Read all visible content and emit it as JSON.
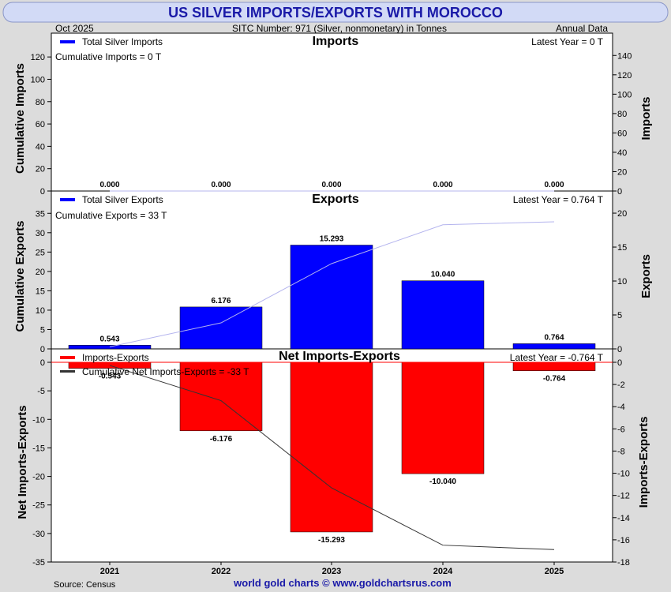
{
  "title": "US SILVER IMPORTS/EXPORTS WITH MOROCCO",
  "header": {
    "date": "Oct  2025",
    "sitc": "SITC Number: 971 (Silver, nonmonetary) in Tonnes",
    "frequency": "Annual Data"
  },
  "footer": {
    "source": "Source: Census",
    "credit": "world gold charts © www.goldchartsrus.com"
  },
  "colors": {
    "title_bg": "#d2daf6",
    "title_text": "#1a1aa8",
    "page_bg": "#dcdcdc",
    "import_bar": "#0000ff",
    "export_bar": "#0000ff",
    "net_bar": "#ff0000",
    "cumulative_export_line": "#b4b4ee",
    "cumulative_net_line": "#333333",
    "zero_line": "#ff0000"
  },
  "chart_data": [
    {
      "type": "bar",
      "panel": "imports",
      "title": "Imports",
      "legend": "Total Silver Imports",
      "cumulative_label": "Cumulative Imports = 0 T",
      "latest_label": "Latest Year = 0 T",
      "ylabel_left": "Cumulative Imports",
      "ylabel_right": "Imports",
      "categories": [
        "2021",
        "2022",
        "2023",
        "2024",
        "2025"
      ],
      "values": [
        0,
        0,
        0,
        0,
        0
      ],
      "value_labels": [
        "0.000",
        "0.000",
        "0.000",
        "0.000",
        "0.000"
      ],
      "cumulative": [
        0,
        0,
        0,
        0,
        0
      ],
      "left_ylim": [
        0,
        130
      ],
      "left_ticks": [
        0,
        20,
        40,
        60,
        80,
        100,
        120
      ],
      "right_ylim": [
        0,
        150
      ],
      "right_ticks": [
        0,
        20,
        40,
        60,
        80,
        100,
        120,
        140
      ]
    },
    {
      "type": "bar",
      "panel": "exports",
      "title": "Exports",
      "legend": "Total Silver Exports",
      "cumulative_label": "Cumulative Exports = 33 T",
      "latest_label": "Latest Year = 0.764 T",
      "ylabel_left": "Cumulative Exports",
      "ylabel_right": "Exports",
      "categories": [
        "2021",
        "2022",
        "2023",
        "2024",
        "2025"
      ],
      "values": [
        0.543,
        6.176,
        15.293,
        10.04,
        0.764
      ],
      "value_labels": [
        "0.543",
        "6.176",
        "15.293",
        "10.040",
        "0.764"
      ],
      "cumulative": [
        0.543,
        6.719,
        22.012,
        32.052,
        32.816
      ],
      "left_ylim": [
        0,
        37.5
      ],
      "left_ticks": [
        0,
        5,
        10,
        15,
        20,
        25,
        30,
        35
      ],
      "right_ylim": [
        0,
        21.4
      ],
      "right_ticks": [
        0,
        5,
        10,
        15,
        20
      ]
    },
    {
      "type": "bar",
      "panel": "net",
      "title": "Net Imports-Exports",
      "legend": "Imports-Exports",
      "cumulative_label": "Cumulative Net Imports-Exports = -33 T",
      "latest_label": "Latest Year = -0.764 T",
      "ylabel_left": "Net Imports-Exports",
      "ylabel_right": "Imports-Exports",
      "categories": [
        "2021",
        "2022",
        "2023",
        "2024",
        "2025"
      ],
      "values": [
        -0.543,
        -6.176,
        -15.293,
        -10.04,
        -0.764
      ],
      "value_labels": [
        "-0.543",
        "-6.176",
        "-15.293",
        "-10.040",
        "-0.764"
      ],
      "cumulative": [
        -0.543,
        -6.719,
        -22.012,
        -32.052,
        -32.816
      ],
      "left_ylim": [
        -35,
        0
      ],
      "left_ticks": [
        0,
        -5,
        -10,
        -15,
        -20,
        -25,
        -30,
        -35
      ],
      "right_ylim": [
        -18,
        0
      ],
      "right_ticks": [
        0,
        -2,
        -4,
        -6,
        -8,
        -10,
        -12,
        -14,
        -16,
        -18
      ]
    }
  ]
}
